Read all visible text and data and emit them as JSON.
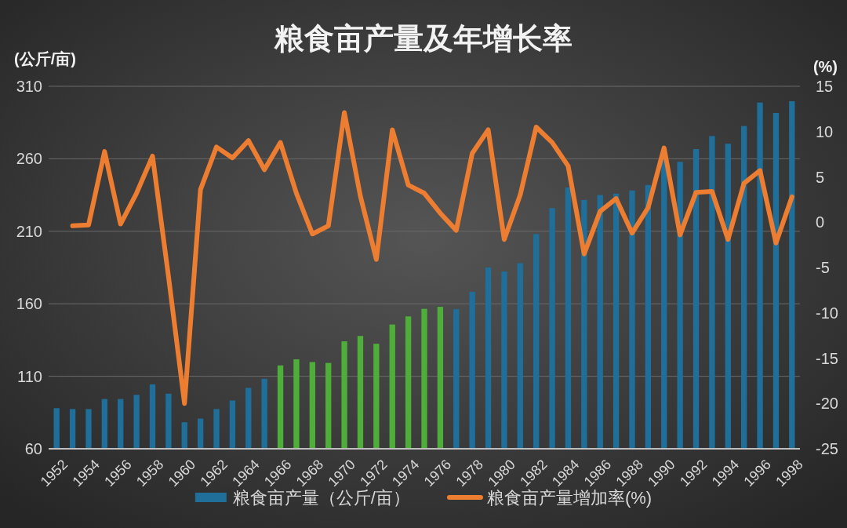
{
  "chart_data": {
    "type": "bar",
    "title": "粮食亩产量及年增长率",
    "ylabel": "(公斤/亩)",
    "y2label": "(%)",
    "categories": [
      "1952",
      null,
      "1954",
      null,
      "1956",
      null,
      "1958",
      null,
      "1960",
      null,
      "1962",
      null,
      "1964",
      null,
      "1966",
      null,
      "1968",
      null,
      "1970",
      null,
      "1972",
      null,
      "1974",
      null,
      "1976",
      null,
      "1978",
      null,
      "1980",
      null,
      "1982",
      null,
      "1984",
      null,
      "1986",
      null,
      "1988",
      null,
      "1990",
      null,
      "1992",
      null,
      "1994",
      null,
      "1996",
      null,
      "1998"
    ],
    "series": [
      {
        "name": "粮食亩产量（公斤/亩）",
        "color": "#1f6f9a",
        "colors": [
          "#1f6f9a",
          "#1f6f9a",
          "#1f6f9a",
          "#1f6f9a",
          "#1f6f9a",
          "#1f6f9a",
          "#1f6f9a",
          "#1f6f9a",
          "#1f6f9a",
          "#1f6f9a",
          "#1f6f9a",
          "#1f6f9a",
          "#1f6f9a",
          "#1f6f9a",
          "#4fae3a",
          "#4fae3a",
          "#4fae3a",
          "#4fae3a",
          "#4fae3a",
          "#4fae3a",
          "#4fae3a",
          "#4fae3a",
          "#4fae3a",
          "#4fae3a",
          "#4fae3a",
          "#1f6f9a",
          "#1f6f9a",
          "#1f6f9a",
          "#1f6f9a",
          "#1f6f9a",
          "#1f6f9a",
          "#1f6f9a",
          "#1f6f9a",
          "#1f6f9a",
          "#1f6f9a",
          "#1f6f9a",
          "#1f6f9a",
          "#1f6f9a",
          "#1f6f9a",
          "#1f6f9a",
          "#1f6f9a",
          "#1f6f9a",
          "#1f6f9a",
          "#1f6f9a",
          "#1f6f9a",
          "#1f6f9a",
          "#1f6f9a"
        ],
        "values": [
          88,
          87.4,
          87.4,
          94.3,
          94.3,
          97.2,
          104.4,
          98,
          78.3,
          80.8,
          87.4,
          93.3,
          102,
          108.2,
          117.5,
          121.7,
          119.8,
          119.2,
          134.1,
          137.8,
          132.4,
          145.7,
          151.3,
          156.5,
          157.9,
          156.3,
          168.2,
          185.1,
          182.2,
          188,
          208.1,
          226,
          240.2,
          231.6,
          235,
          235.9,
          238.1,
          241.9,
          261.1,
          257.9,
          266.7,
          275.7,
          270.4,
          282.6,
          298.8,
          291.6,
          299.7
        ]
      },
      {
        "type": "line",
        "axis": "y2",
        "name": "粮食亩产量增加率(%)",
        "color": "#ed7d31",
        "values": [
          null,
          -0.4,
          -0.3,
          7.8,
          -0.2,
          3.2,
          7.3,
          -6,
          -20,
          3.6,
          8.3,
          7.1,
          9,
          5.8,
          8.8,
          3.2,
          -1.3,
          -0.4,
          12.1,
          2.9,
          -4.1,
          10.2,
          4.1,
          3.2,
          1,
          -0.9,
          7.6,
          10.2,
          -1.9,
          3,
          10.5,
          8.8,
          6.2,
          -3.5,
          1.2,
          2.6,
          -1.2,
          1.6,
          8.2,
          -1.4,
          3.3,
          3.4,
          -1.9,
          4.3,
          5.7,
          -2.3,
          2.8
        ]
      }
    ],
    "ylim": [
      60,
      310
    ],
    "yticks": [
      60,
      110,
      160,
      210,
      260,
      310
    ],
    "y2lim": [
      -25,
      15
    ],
    "y2ticks": [
      -25,
      -20,
      -15,
      -10,
      -5,
      0,
      5,
      10,
      15
    ],
    "grid": "y",
    "legend": "bottom"
  }
}
